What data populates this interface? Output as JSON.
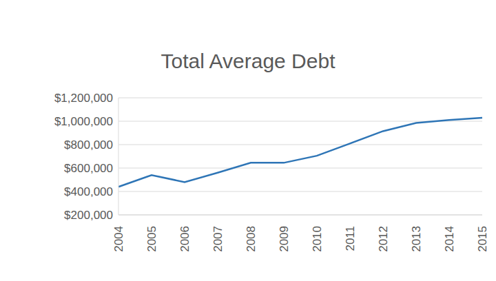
{
  "chart_data": {
    "type": "line",
    "title": "Total Average Debt",
    "categories": [
      "2004",
      "2005",
      "2006",
      "2007",
      "2008",
      "2009",
      "2010",
      "2011",
      "2012",
      "2013",
      "2014",
      "2015"
    ],
    "values": [
      440000,
      540000,
      480000,
      560000,
      645000,
      645000,
      705000,
      810000,
      915000,
      985000,
      1010000,
      1030000
    ],
    "color": "#2e75b6",
    "ylim": [
      200000,
      1200000
    ],
    "yticks": [
      {
        "value": 200000,
        "label": "$200,000"
      },
      {
        "value": 400000,
        "label": "$400,000"
      },
      {
        "value": 600000,
        "label": "$600,000"
      },
      {
        "value": 800000,
        "label": "$800,000"
      },
      {
        "value": 1000000,
        "label": "$1,000,000"
      },
      {
        "value": 1200000,
        "label": "$1,200,000"
      }
    ],
    "grid": true
  }
}
